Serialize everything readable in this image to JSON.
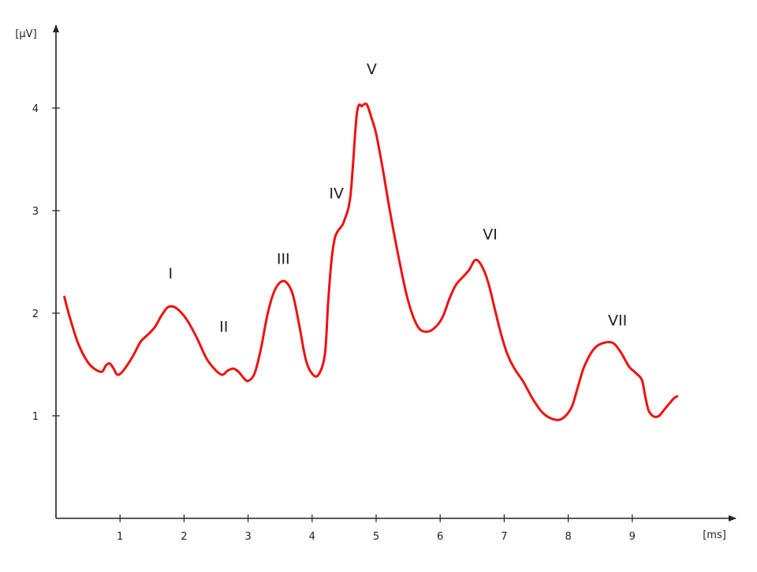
{
  "chart_data": {
    "type": "line",
    "title": "",
    "xlabel": "[ms]",
    "ylabel": "[µV]",
    "xlim": [
      0,
      10
    ],
    "ylim": [
      0,
      4.8
    ],
    "xticks": [
      1,
      2,
      3,
      4,
      5,
      6,
      7,
      8,
      9
    ],
    "yticks": [
      1,
      2,
      3,
      4
    ],
    "grid": false,
    "line_color": "#ee1111",
    "series": [
      {
        "x": [
          0.13,
          0.22,
          0.35,
          0.5,
          0.62,
          0.72,
          0.78,
          0.84,
          0.9,
          0.96,
          1.05,
          1.2,
          1.32,
          1.45,
          1.55,
          1.65,
          1.75,
          1.85,
          1.95,
          2.05,
          2.2,
          2.35,
          2.5,
          2.6,
          2.68,
          2.77,
          2.85,
          2.93,
          3.0,
          3.1,
          3.2,
          3.3,
          3.4,
          3.5,
          3.6,
          3.7,
          3.8,
          3.9,
          4.0,
          4.1,
          4.2,
          4.25,
          4.3,
          4.35,
          4.4,
          4.45,
          4.5,
          4.6,
          4.7,
          4.78,
          4.82,
          4.86,
          4.92,
          5.0,
          5.1,
          5.2,
          5.35,
          5.5,
          5.65,
          5.8,
          5.95,
          6.05,
          6.15,
          6.25,
          6.35,
          6.45,
          6.55,
          6.65,
          6.75,
          6.85,
          6.95,
          7.05,
          7.15,
          7.3,
          7.45,
          7.6,
          7.75,
          7.9,
          8.05,
          8.15,
          8.25,
          8.4,
          8.55,
          8.7,
          8.82,
          8.95,
          9.05,
          9.15,
          9.2,
          9.25,
          9.3,
          9.35,
          9.42,
          9.5,
          9.58,
          9.65,
          9.7
        ],
        "values": [
          2.16,
          1.95,
          1.7,
          1.52,
          1.45,
          1.43,
          1.49,
          1.51,
          1.46,
          1.4,
          1.44,
          1.58,
          1.72,
          1.8,
          1.87,
          1.98,
          2.06,
          2.06,
          2.01,
          1.93,
          1.76,
          1.56,
          1.44,
          1.4,
          1.44,
          1.46,
          1.43,
          1.37,
          1.34,
          1.41,
          1.65,
          1.98,
          2.2,
          2.3,
          2.3,
          2.18,
          1.88,
          1.55,
          1.41,
          1.4,
          1.6,
          2.1,
          2.5,
          2.72,
          2.8,
          2.84,
          2.9,
          3.15,
          3.95,
          4.02,
          4.04,
          4.03,
          3.92,
          3.75,
          3.42,
          3.05,
          2.55,
          2.12,
          1.87,
          1.82,
          1.88,
          1.98,
          2.15,
          2.28,
          2.35,
          2.42,
          2.52,
          2.46,
          2.3,
          2.05,
          1.8,
          1.6,
          1.47,
          1.33,
          1.16,
          1.03,
          0.97,
          0.97,
          1.08,
          1.28,
          1.48,
          1.65,
          1.71,
          1.71,
          1.62,
          1.48,
          1.42,
          1.35,
          1.2,
          1.06,
          1.01,
          0.99,
          1.0,
          1.06,
          1.12,
          1.17,
          1.19
        ]
      }
    ],
    "annotations": [
      {
        "text": "I",
        "x": 1.79,
        "y": 2.34
      },
      {
        "text": "II",
        "x": 2.62,
        "y": 1.82
      },
      {
        "text": "III",
        "x": 3.55,
        "y": 2.48
      },
      {
        "text": "IV",
        "x": 4.38,
        "y": 3.12
      },
      {
        "text": "V",
        "x": 4.93,
        "y": 4.33
      },
      {
        "text": "VI",
        "x": 6.78,
        "y": 2.72
      },
      {
        "text": "VII",
        "x": 8.77,
        "y": 1.88
      }
    ]
  }
}
